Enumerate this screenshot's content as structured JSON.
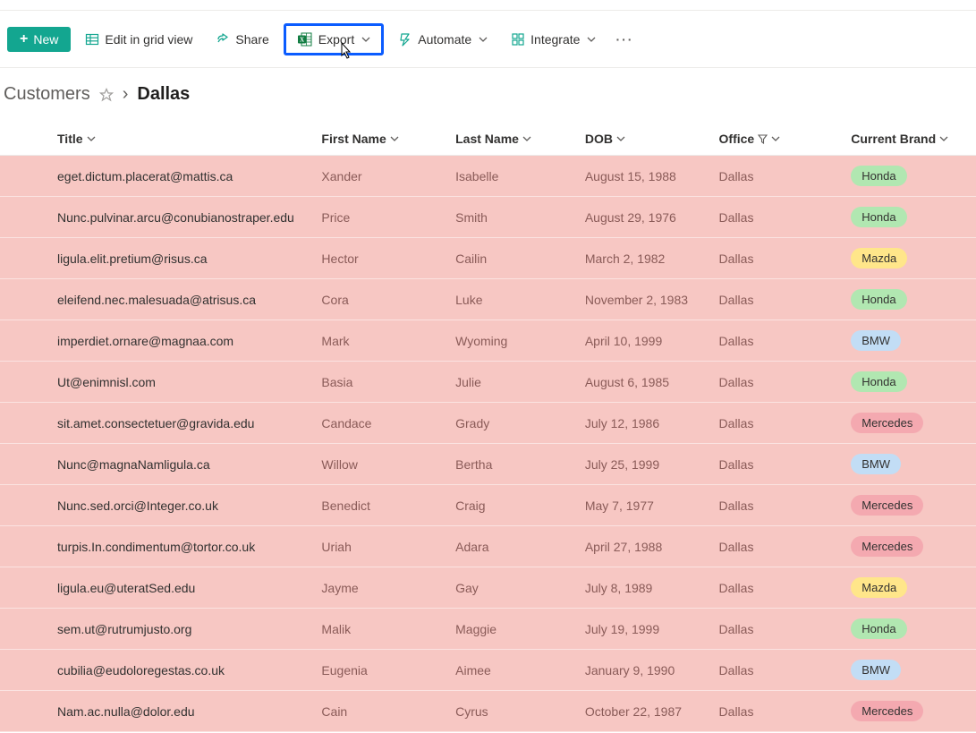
{
  "colors": {
    "row_bg": "#f7c7c3",
    "dim_text": "#8a5b58",
    "primary": "#13a690",
    "highlight_border": "#0b5cff"
  },
  "toolbar": {
    "new_label": "New",
    "edit_grid_label": "Edit in grid view",
    "share_label": "Share",
    "export_label": "Export",
    "automate_label": "Automate",
    "integrate_label": "Integrate"
  },
  "breadcrumb": {
    "parent": "Customers",
    "current": "Dallas"
  },
  "columns": {
    "title": "Title",
    "first_name": "First Name",
    "last_name": "Last Name",
    "dob": "DOB",
    "office": "Office",
    "brand": "Current Brand"
  },
  "brand_colors": {
    "Honda": "#b1e7b1",
    "Mazda": "#ffe68a",
    "BMW": "#c2ddf5",
    "Mercedes": "#f4a9b0"
  },
  "rows": [
    {
      "title": "eget.dictum.placerat@mattis.ca",
      "first_name": "Xander",
      "last_name": "Isabelle",
      "dob": "August 15, 1988",
      "office": "Dallas",
      "brand": "Honda"
    },
    {
      "title": "Nunc.pulvinar.arcu@conubianostraper.edu",
      "first_name": "Price",
      "last_name": "Smith",
      "dob": "August 29, 1976",
      "office": "Dallas",
      "brand": "Honda"
    },
    {
      "title": "ligula.elit.pretium@risus.ca",
      "first_name": "Hector",
      "last_name": "Cailin",
      "dob": "March 2, 1982",
      "office": "Dallas",
      "brand": "Mazda"
    },
    {
      "title": "eleifend.nec.malesuada@atrisus.ca",
      "first_name": "Cora",
      "last_name": "Luke",
      "dob": "November 2, 1983",
      "office": "Dallas",
      "brand": "Honda"
    },
    {
      "title": "imperdiet.ornare@magnaa.com",
      "first_name": "Mark",
      "last_name": "Wyoming",
      "dob": "April 10, 1999",
      "office": "Dallas",
      "brand": "BMW"
    },
    {
      "title": "Ut@enimnisl.com",
      "first_name": "Basia",
      "last_name": "Julie",
      "dob": "August 6, 1985",
      "office": "Dallas",
      "brand": "Honda"
    },
    {
      "title": "sit.amet.consectetuer@gravida.edu",
      "first_name": "Candace",
      "last_name": "Grady",
      "dob": "July 12, 1986",
      "office": "Dallas",
      "brand": "Mercedes"
    },
    {
      "title": "Nunc@magnaNamligula.ca",
      "first_name": "Willow",
      "last_name": "Bertha",
      "dob": "July 25, 1999",
      "office": "Dallas",
      "brand": "BMW"
    },
    {
      "title": "Nunc.sed.orci@Integer.co.uk",
      "first_name": "Benedict",
      "last_name": "Craig",
      "dob": "May 7, 1977",
      "office": "Dallas",
      "brand": "Mercedes"
    },
    {
      "title": "turpis.In.condimentum@tortor.co.uk",
      "first_name": "Uriah",
      "last_name": "Adara",
      "dob": "April 27, 1988",
      "office": "Dallas",
      "brand": "Mercedes"
    },
    {
      "title": "ligula.eu@uteratSed.edu",
      "first_name": "Jayme",
      "last_name": "Gay",
      "dob": "July 8, 1989",
      "office": "Dallas",
      "brand": "Mazda"
    },
    {
      "title": "sem.ut@rutrumjusto.org",
      "first_name": "Malik",
      "last_name": "Maggie",
      "dob": "July 19, 1999",
      "office": "Dallas",
      "brand": "Honda"
    },
    {
      "title": "cubilia@eudoloregestas.co.uk",
      "first_name": "Eugenia",
      "last_name": "Aimee",
      "dob": "January 9, 1990",
      "office": "Dallas",
      "brand": "BMW"
    },
    {
      "title": "Nam.ac.nulla@dolor.edu",
      "first_name": "Cain",
      "last_name": "Cyrus",
      "dob": "October 22, 1987",
      "office": "Dallas",
      "brand": "Mercedes"
    }
  ]
}
